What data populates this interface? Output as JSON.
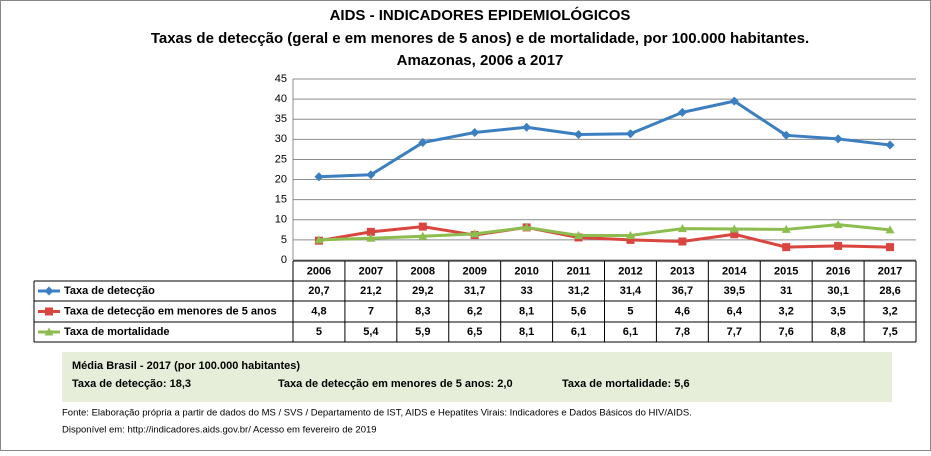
{
  "chart_data": {
    "type": "line",
    "title": "AIDS - INDICADORES EPIDEMIOLÓGICOS",
    "subtitle": [
      "Taxas de detecção (geral e em menores de 5 anos) e de mortalidade, por 100.000 habitantes.",
      "Amazonas, 2006 a 2017"
    ],
    "categories": [
      "2006",
      "2007",
      "2008",
      "2009",
      "2010",
      "2011",
      "2012",
      "2013",
      "2014",
      "2015",
      "2016",
      "2017"
    ],
    "series": [
      {
        "name": "Taxa de detecção",
        "color": "#3b7fc0",
        "marker": "diamond",
        "values": [
          20.7,
          21.2,
          29.2,
          31.7,
          33,
          31.2,
          31.4,
          36.7,
          39.5,
          31,
          30.1,
          28.6
        ],
        "value_labels": [
          "20,7",
          "21,2",
          "29,2",
          "31,7",
          "33",
          "31,2",
          "31,4",
          "36,7",
          "39,5",
          "31",
          "30,1",
          "28,6"
        ]
      },
      {
        "name": "Taxa de detecção em menores de 5 anos",
        "color": "#d9453f",
        "marker": "square",
        "values": [
          4.8,
          7,
          8.3,
          6.2,
          8.1,
          5.6,
          5,
          4.6,
          6.4,
          3.2,
          3.5,
          3.2
        ],
        "value_labels": [
          "4,8",
          "7",
          "8,3",
          "6,2",
          "8,1",
          "5,6",
          "5",
          "4,6",
          "6,4",
          "3,2",
          "3,5",
          "3,2"
        ]
      },
      {
        "name": "Taxa de mortalidade",
        "color": "#8dbd4f",
        "marker": "triangle",
        "values": [
          5,
          5.4,
          5.9,
          6.5,
          8.1,
          6.1,
          6.1,
          7.8,
          7.7,
          7.6,
          8.8,
          7.5
        ],
        "value_labels": [
          "5",
          "5,4",
          "5,9",
          "6,5",
          "8,1",
          "6,1",
          "6,1",
          "7,8",
          "7,7",
          "7,6",
          "8,8",
          "7,5"
        ]
      }
    ],
    "ylim": [
      0,
      45
    ],
    "yticks": [
      0,
      5,
      10,
      15,
      20,
      25,
      30,
      35,
      40,
      45
    ],
    "grid": true
  },
  "summary": {
    "heading": "Média Brasil - 2017  (por 100.000 habitantes)",
    "items": [
      "Taxa de detecção: 18,3",
      "Taxa de detecção em menores de 5 anos: 2,0",
      "Taxa de mortalidade: 5,6"
    ]
  },
  "source": [
    "Fonte: Elaboração própria a partir de dados do MS / SVS / Departamento de IST, AIDS e Hepatites Virais: Indicadores e Dados Básicos do HIV/AIDS.",
    "Disponível em: http://indicadores.aids.gov.br/   Acesso em fevereiro de 2019"
  ]
}
